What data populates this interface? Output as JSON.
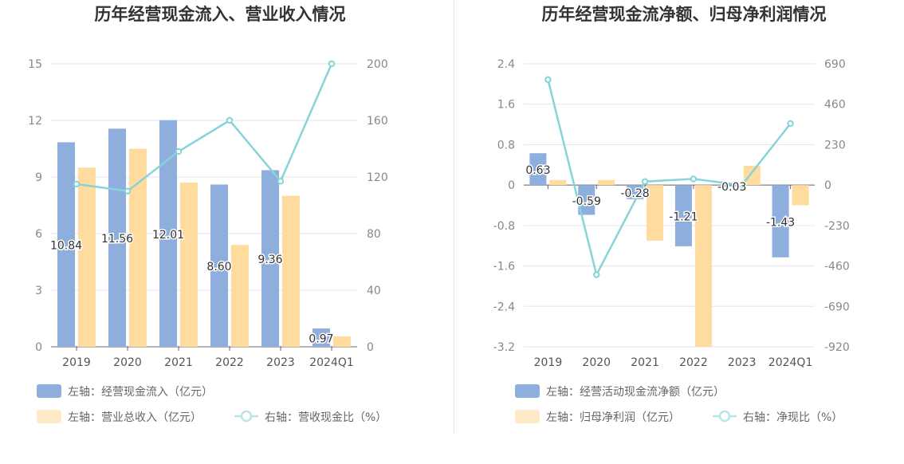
{
  "chart_data": [
    {
      "type": "bar",
      "title": "历年经营现金流入、营业收入情况",
      "categories": [
        "2019",
        "2020",
        "2021",
        "2022",
        "2023",
        "2024Q1"
      ],
      "left_axis": {
        "ticks": [
          "0",
          "3",
          "6",
          "9",
          "12",
          "15"
        ],
        "ylim": [
          0,
          15
        ]
      },
      "right_axis": {
        "ticks": [
          "0",
          "40",
          "80",
          "120",
          "160",
          "200"
        ],
        "ylim": [
          0,
          200
        ]
      },
      "series": [
        {
          "name": "左轴：经营现金流入（亿元）",
          "type": "bar",
          "axis": "left",
          "color": "#8eaedd",
          "values": [
            10.84,
            11.56,
            12.01,
            8.6,
            9.36,
            0.97
          ],
          "labels": [
            "10.84",
            "11.56",
            "12.01",
            "8.60",
            "9.36",
            "0.97"
          ]
        },
        {
          "name": "左轴：营业总收入（亿元）",
          "type": "bar",
          "axis": "left",
          "color": "#ffdb9e",
          "values": [
            9.5,
            10.5,
            8.7,
            5.4,
            8.0,
            0.55
          ]
        },
        {
          "name": "右轴：营收现金比（%）",
          "type": "line",
          "axis": "right",
          "color": "#86d4d8",
          "values": [
            115,
            110,
            138,
            160,
            117,
            200
          ]
        }
      ]
    },
    {
      "type": "bar",
      "title": "历年经营现金流净额、归母净利润情况",
      "categories": [
        "2019",
        "2020",
        "2021",
        "2022",
        "2023",
        "2024Q1"
      ],
      "left_axis": {
        "ticks": [
          "-3.2",
          "-2.4",
          "-1.6",
          "-0.8",
          "0",
          "0.8",
          "1.6",
          "2.4"
        ],
        "ylim": [
          -3.2,
          2.4
        ]
      },
      "right_axis": {
        "ticks": [
          "-920",
          "-690",
          "-460",
          "-230",
          "0",
          "230",
          "460",
          "690"
        ],
        "ylim": [
          -920,
          690
        ]
      },
      "series": [
        {
          "name": "左轴：经营活动现金流净额（亿元）",
          "type": "bar",
          "axis": "left",
          "color": "#8eaedd",
          "values": [
            0.63,
            -0.59,
            -0.28,
            -1.21,
            -0.03,
            -1.43
          ],
          "labels": [
            "0.63",
            "-0.59",
            "-0.28",
            "-1.21",
            "-0.03",
            "-1.43"
          ]
        },
        {
          "name": "左轴：归母净利润（亿元）",
          "type": "bar",
          "axis": "left",
          "color": "#ffdb9e",
          "values": [
            0.1,
            0.1,
            -1.1,
            -3.2,
            0.38,
            -0.4
          ]
        },
        {
          "name": "右轴：净现比（%）",
          "type": "line",
          "axis": "right",
          "color": "#86d4d8",
          "values": [
            600,
            -510,
            20,
            35,
            0,
            350
          ]
        }
      ]
    }
  ]
}
